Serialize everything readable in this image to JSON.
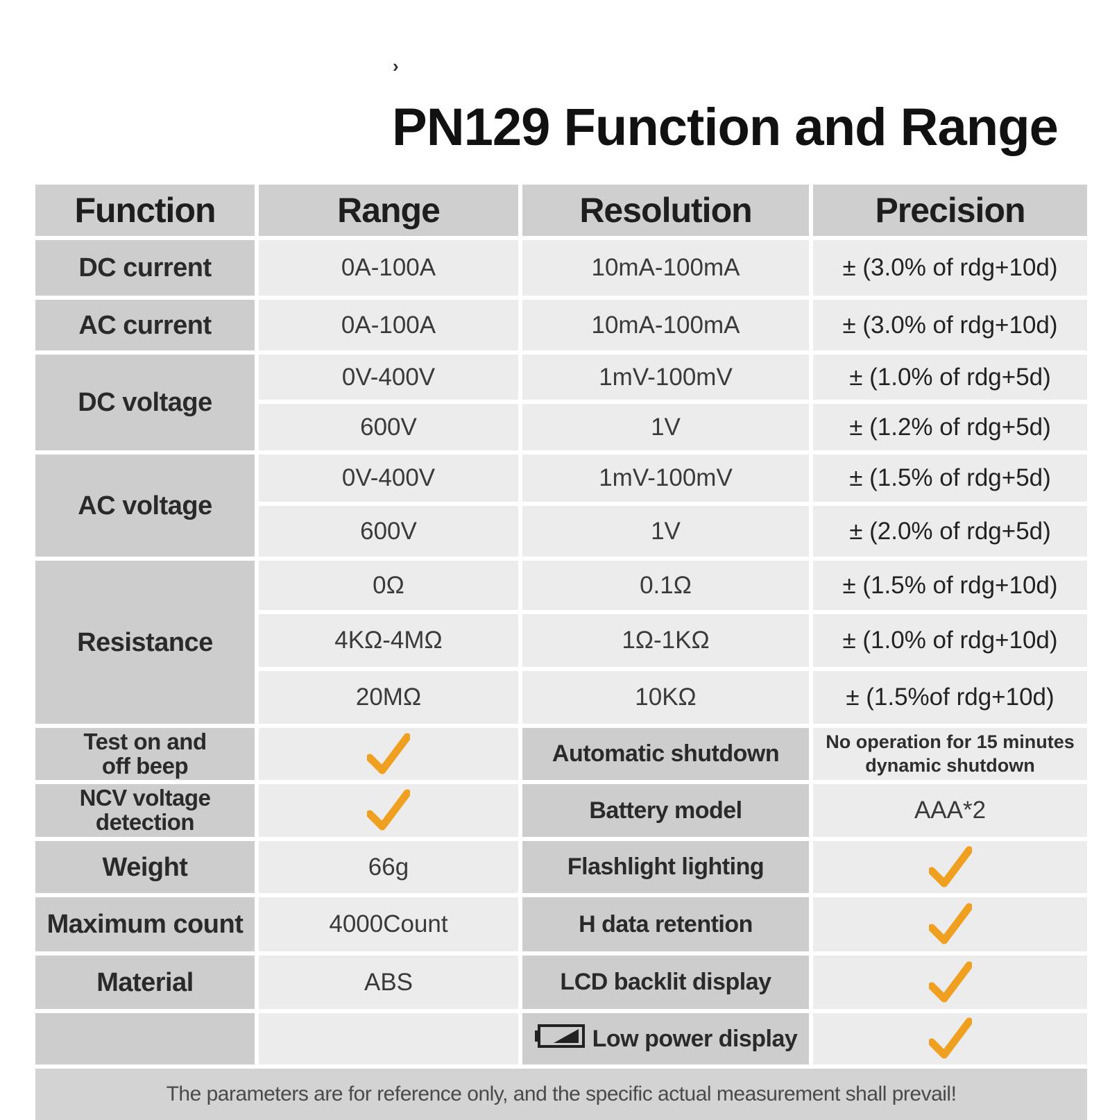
{
  "title": "PN129 Function and Range",
  "headers": [
    "Function",
    "Range",
    "Resolution",
    "Precision"
  ],
  "measurements": [
    {
      "function": "DC current",
      "rows": [
        {
          "range": "0A-100A",
          "resolution": "10mA-100mA",
          "precision": "± (3.0% of rdg+10d)"
        }
      ]
    },
    {
      "function": "AC current",
      "rows": [
        {
          "range": "0A-100A",
          "resolution": "10mA-100mA",
          "precision": "± (3.0% of rdg+10d)"
        }
      ]
    },
    {
      "function": "DC voltage",
      "rows": [
        {
          "range": "0V-400V",
          "resolution": "1mV-100mV",
          "precision": "± (1.0% of rdg+5d)"
        },
        {
          "range": "600V",
          "resolution": "1V",
          "precision": "± (1.2% of rdg+5d)"
        }
      ]
    },
    {
      "function": "AC voltage",
      "rows": [
        {
          "range": "0V-400V",
          "resolution": "1mV-100mV",
          "precision": "± (1.5% of rdg+5d)"
        },
        {
          "range": "600V",
          "resolution": "1V",
          "precision": "± (2.0% of rdg+5d)"
        }
      ]
    },
    {
      "function": "Resistance",
      "rows": [
        {
          "range": "0Ω",
          "resolution": "0.1Ω",
          "precision": "± (1.5% of rdg+10d)"
        },
        {
          "range": "4KΩ-4MΩ",
          "resolution": "1Ω-1KΩ",
          "precision": "± (1.0% of rdg+10d)"
        },
        {
          "range": "20MΩ",
          "resolution": "10KΩ",
          "precision": "± (1.5%of rdg+10d)"
        }
      ]
    }
  ],
  "left_features": [
    {
      "label_line1": "Test on and",
      "label_line2": "off beep",
      "value": null,
      "checked": true
    },
    {
      "label_line1": "NCV voltage",
      "label_line2": "detection",
      "value": null,
      "checked": true
    },
    {
      "label": "Weight",
      "value": "66g"
    },
    {
      "label": "Maximum count",
      "value": "4000Count"
    },
    {
      "label": "Material",
      "value": "ABS"
    }
  ],
  "right_features": [
    {
      "label": "Automatic shutdown",
      "note_line1": "No operation for 15 minutes",
      "note_line2": "dynamic shutdown"
    },
    {
      "label": "Battery model",
      "value": "AAA*2"
    },
    {
      "label": "Flashlight lighting",
      "checked": true
    },
    {
      "label": "H data retention",
      "checked": true
    },
    {
      "label": "LCD backlit display",
      "checked": true
    },
    {
      "label": "Low power display",
      "checked": true,
      "icon": "battery-low-icon"
    }
  ],
  "footer": "The parameters are for reference only, and the specific actual measurement shall prevail!",
  "colors": {
    "header_bg": "#cfcfcf",
    "value_bg": "#ececec",
    "check": "#f0a020"
  }
}
